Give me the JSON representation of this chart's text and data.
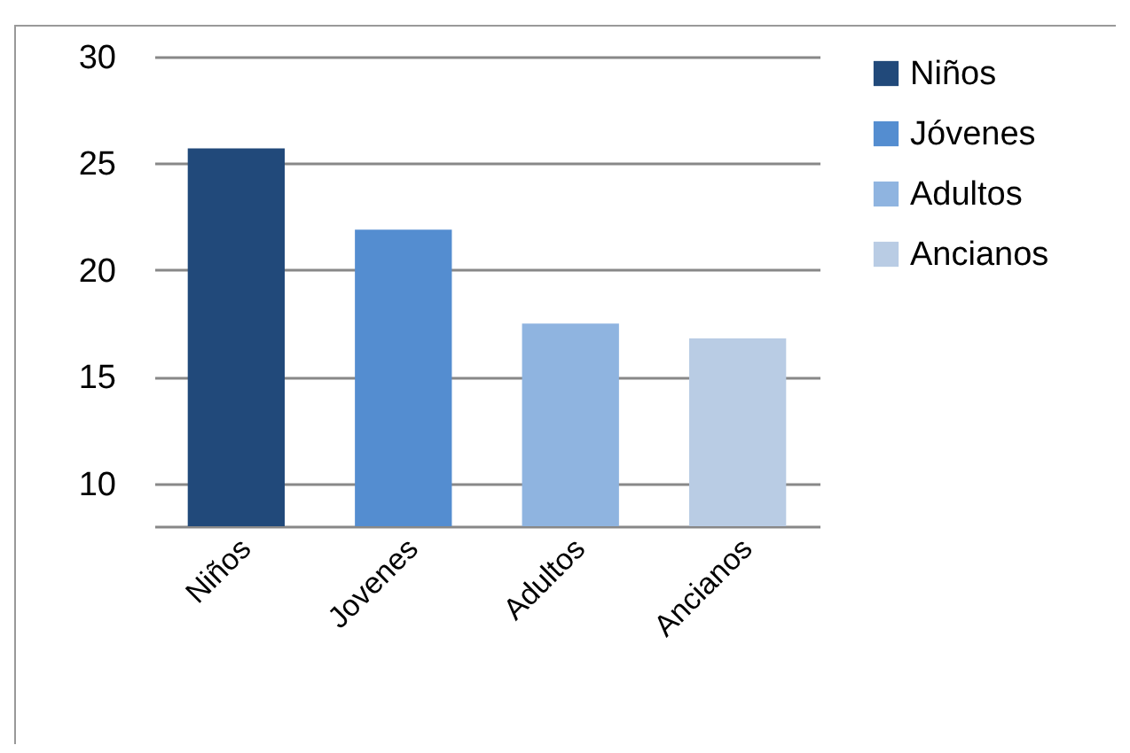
{
  "chart_data": {
    "type": "bar",
    "categories": [
      "Niños",
      "Jovenes",
      "Adultos",
      "Ancianos"
    ],
    "series": [
      {
        "name": "Niños",
        "color": "#21497a",
        "values": [
          25.7,
          null,
          null,
          null
        ]
      },
      {
        "name": "Jóvenes",
        "color": "#548dd0",
        "values": [
          null,
          21.9,
          null,
          null
        ]
      },
      {
        "name": "Adultos",
        "color": "#8fb4e0",
        "values": [
          null,
          null,
          17.5,
          null
        ]
      },
      {
        "name": "Ancianos",
        "color": "#b9cce4",
        "values": [
          null,
          null,
          null,
          16.8
        ]
      }
    ],
    "ylim": [
      8,
      30
    ],
    "yticks": [
      30,
      25,
      20,
      15,
      10
    ],
    "grid": "y",
    "legend": "right"
  }
}
